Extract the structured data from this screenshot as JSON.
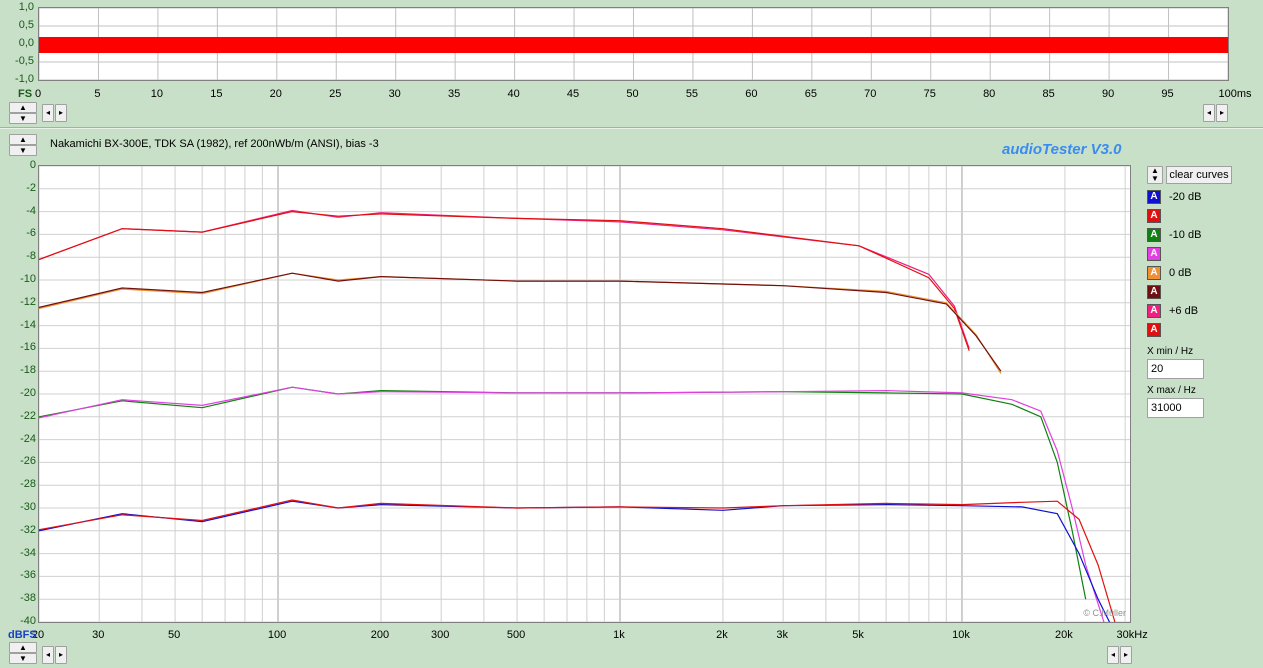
{
  "top_scope": {
    "y_ticks": [
      "1,0",
      "0,5",
      "0,0",
      "-0,5",
      "-1,0"
    ],
    "y_unit": "FS",
    "x_ticks": [
      "0",
      "5",
      "10",
      "15",
      "20",
      "25",
      "30",
      "35",
      "40",
      "45",
      "50",
      "55",
      "60",
      "65",
      "70",
      "75",
      "80",
      "85",
      "90",
      "95",
      "100ms"
    ]
  },
  "header": {
    "title": "Nakamichi BX-300E, TDK SA (1982), ref 200nWb/m (ANSI), bias -3",
    "brand": "audioTester  V3.0"
  },
  "freq_plot": {
    "y_unit": "dBFS",
    "y_ticks": [
      "0",
      "-2",
      "-4",
      "-6",
      "-8",
      "-10",
      "-12",
      "-14",
      "-16",
      "-18",
      "-20",
      "-22",
      "-24",
      "-26",
      "-28",
      "-30",
      "-32",
      "-34",
      "-36",
      "-38",
      "-40"
    ],
    "x_ticks": [
      "20",
      "30",
      "50",
      "100",
      "200",
      "300",
      "500",
      "1k",
      "2k",
      "3k",
      "5k",
      "10k",
      "20k",
      "30kHz"
    ],
    "watermark": "© C.Müller"
  },
  "legend": {
    "clear_label": "clear curves",
    "items": [
      {
        "label": "-20 dB",
        "color": "#1010d0",
        "letter": "A"
      },
      {
        "label": "",
        "color": "#e01010",
        "letter": "A"
      },
      {
        "label": "-10 dB",
        "color": "#108010",
        "letter": "A"
      },
      {
        "label": "",
        "color": "#e040e0",
        "letter": "A"
      },
      {
        "label": "0 dB",
        "color": "#f09030",
        "letter": "A"
      },
      {
        "label": "",
        "color": "#701010",
        "letter": "A"
      },
      {
        "label": "+6 dB",
        "color": "#f02080",
        "letter": "A"
      },
      {
        "label": "",
        "color": "#e01010",
        "letter": "A"
      }
    ]
  },
  "fields": {
    "xmin_label": "X min / Hz",
    "xmin_value": "20",
    "xmax_label": "X max / Hz",
    "xmax_value": "31000"
  },
  "chart_data": {
    "type": "line",
    "x_scale": "log",
    "xlim": [
      20,
      31000
    ],
    "ylim": [
      -40,
      0
    ],
    "xlabel": "",
    "ylabel": "dBFS",
    "series": [
      {
        "name": "+6 dB",
        "color": "#f02080",
        "x": [
          20,
          35,
          60,
          110,
          150,
          200,
          500,
          1000,
          2000,
          5000,
          8000,
          9500,
          10500
        ],
        "y": [
          -8.2,
          -5.5,
          -5.8,
          -3.9,
          -4.5,
          -4.1,
          -4.6,
          -4.9,
          -5.6,
          -7.0,
          -9.5,
          -12.3,
          -16.0
        ]
      },
      {
        "name": "",
        "color": "#e01010",
        "x": [
          20,
          35,
          60,
          110,
          150,
          200,
          500,
          1000,
          2000,
          5000,
          8000,
          9500,
          10500
        ],
        "y": [
          -8.2,
          -5.5,
          -5.8,
          -4.0,
          -4.4,
          -4.2,
          -4.6,
          -4.8,
          -5.5,
          -7.0,
          -9.8,
          -12.5,
          -16.2
        ]
      },
      {
        "name": "0 dB",
        "color": "#f09030",
        "x": [
          20,
          35,
          60,
          110,
          150,
          200,
          500,
          1000,
          3000,
          6000,
          9000,
          11000,
          13000
        ],
        "y": [
          -12.5,
          -10.8,
          -11.2,
          -9.4,
          -10.0,
          -9.7,
          -10.1,
          -10.1,
          -10.5,
          -11.0,
          -12.0,
          -14.8,
          -18.2
        ]
      },
      {
        "name": "",
        "color": "#701010",
        "x": [
          20,
          35,
          60,
          110,
          150,
          200,
          500,
          1000,
          3000,
          6000,
          9000,
          11000,
          13000
        ],
        "y": [
          -12.4,
          -10.7,
          -11.1,
          -9.4,
          -10.1,
          -9.7,
          -10.1,
          -10.1,
          -10.5,
          -11.1,
          -12.1,
          -14.9,
          -18.0
        ]
      },
      {
        "name": "-10 dB",
        "color": "#108010",
        "x": [
          20,
          35,
          60,
          110,
          150,
          200,
          500,
          1000,
          3000,
          6000,
          10000,
          14000,
          17000,
          19000,
          21000,
          23000
        ],
        "y": [
          -22.0,
          -20.6,
          -21.2,
          -19.4,
          -20.0,
          -19.7,
          -19.9,
          -19.9,
          -19.8,
          -19.9,
          -20.0,
          -20.9,
          -22.0,
          -26.0,
          -32.0,
          -38.0
        ]
      },
      {
        "name": "",
        "color": "#e040e0",
        "x": [
          20,
          35,
          60,
          110,
          150,
          200,
          500,
          1000,
          3000,
          6000,
          10000,
          14000,
          17000,
          19000,
          21000,
          23000,
          26000
        ],
        "y": [
          -22.1,
          -20.5,
          -21.0,
          -19.4,
          -20.0,
          -19.8,
          -19.9,
          -19.9,
          -19.8,
          -19.7,
          -19.9,
          -20.5,
          -21.5,
          -25.0,
          -30.0,
          -35.0,
          -40.0
        ]
      },
      {
        "name": "-20 dB",
        "color": "#1010d0",
        "x": [
          20,
          35,
          60,
          110,
          150,
          200,
          500,
          1000,
          2000,
          3000,
          6000,
          10000,
          15000,
          19000,
          22000,
          25000,
          27000
        ],
        "y": [
          -32.0,
          -30.5,
          -31.2,
          -29.4,
          -30.0,
          -29.7,
          -30.0,
          -29.9,
          -30.2,
          -29.8,
          -29.7,
          -29.8,
          -29.9,
          -30.5,
          -34.0,
          -38.0,
          -40.0
        ]
      },
      {
        "name": "",
        "color": "#e01010",
        "x": [
          20,
          35,
          60,
          110,
          150,
          200,
          500,
          1000,
          2000,
          3000,
          6000,
          10000,
          15000,
          19000,
          22000,
          25000,
          28000
        ],
        "y": [
          -31.9,
          -30.6,
          -31.1,
          -29.3,
          -30.0,
          -29.6,
          -30.0,
          -29.9,
          -30.0,
          -29.8,
          -29.6,
          -29.7,
          -29.5,
          -29.4,
          -31.0,
          -35.0,
          -40.0
        ]
      }
    ]
  }
}
